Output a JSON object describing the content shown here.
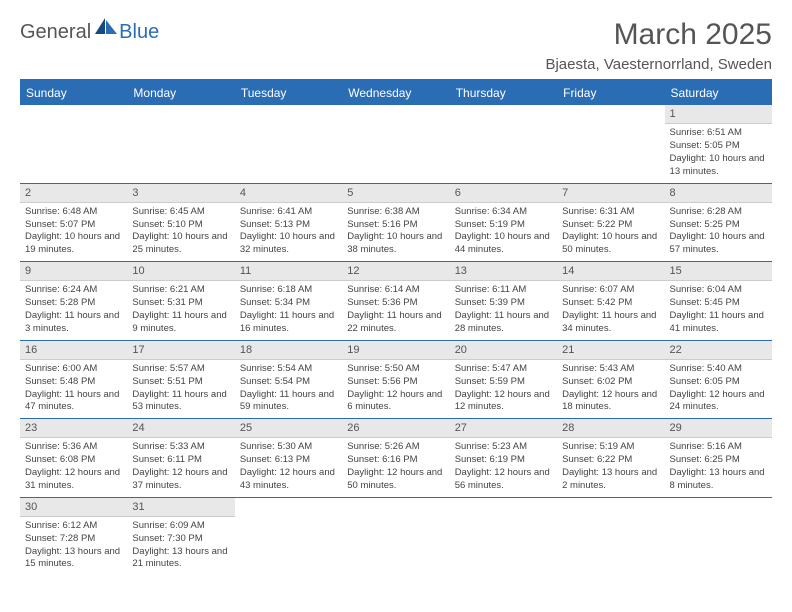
{
  "brand": {
    "text1": "General",
    "text2": "Blue"
  },
  "title": "March 2025",
  "location": "Bjaesta, Vaesternorrland, Sweden",
  "colors": {
    "header_bg": "#2a6db5",
    "header_text": "#ffffff",
    "daynum_bg": "#e8e8e8",
    "border": "#2a6db5",
    "text": "#444444"
  },
  "weekdays": [
    "Sunday",
    "Monday",
    "Tuesday",
    "Wednesday",
    "Thursday",
    "Friday",
    "Saturday"
  ],
  "weeks": [
    [
      {
        "empty": true
      },
      {
        "empty": true
      },
      {
        "empty": true
      },
      {
        "empty": true
      },
      {
        "empty": true
      },
      {
        "empty": true
      },
      {
        "day": "1",
        "sunrise": "Sunrise: 6:51 AM",
        "sunset": "Sunset: 5:05 PM",
        "daylight": "Daylight: 10 hours and 13 minutes."
      }
    ],
    [
      {
        "day": "2",
        "sunrise": "Sunrise: 6:48 AM",
        "sunset": "Sunset: 5:07 PM",
        "daylight": "Daylight: 10 hours and 19 minutes."
      },
      {
        "day": "3",
        "sunrise": "Sunrise: 6:45 AM",
        "sunset": "Sunset: 5:10 PM",
        "daylight": "Daylight: 10 hours and 25 minutes."
      },
      {
        "day": "4",
        "sunrise": "Sunrise: 6:41 AM",
        "sunset": "Sunset: 5:13 PM",
        "daylight": "Daylight: 10 hours and 32 minutes."
      },
      {
        "day": "5",
        "sunrise": "Sunrise: 6:38 AM",
        "sunset": "Sunset: 5:16 PM",
        "daylight": "Daylight: 10 hours and 38 minutes."
      },
      {
        "day": "6",
        "sunrise": "Sunrise: 6:34 AM",
        "sunset": "Sunset: 5:19 PM",
        "daylight": "Daylight: 10 hours and 44 minutes."
      },
      {
        "day": "7",
        "sunrise": "Sunrise: 6:31 AM",
        "sunset": "Sunset: 5:22 PM",
        "daylight": "Daylight: 10 hours and 50 minutes."
      },
      {
        "day": "8",
        "sunrise": "Sunrise: 6:28 AM",
        "sunset": "Sunset: 5:25 PM",
        "daylight": "Daylight: 10 hours and 57 minutes."
      }
    ],
    [
      {
        "day": "9",
        "sunrise": "Sunrise: 6:24 AM",
        "sunset": "Sunset: 5:28 PM",
        "daylight": "Daylight: 11 hours and 3 minutes."
      },
      {
        "day": "10",
        "sunrise": "Sunrise: 6:21 AM",
        "sunset": "Sunset: 5:31 PM",
        "daylight": "Daylight: 11 hours and 9 minutes."
      },
      {
        "day": "11",
        "sunrise": "Sunrise: 6:18 AM",
        "sunset": "Sunset: 5:34 PM",
        "daylight": "Daylight: 11 hours and 16 minutes."
      },
      {
        "day": "12",
        "sunrise": "Sunrise: 6:14 AM",
        "sunset": "Sunset: 5:36 PM",
        "daylight": "Daylight: 11 hours and 22 minutes."
      },
      {
        "day": "13",
        "sunrise": "Sunrise: 6:11 AM",
        "sunset": "Sunset: 5:39 PM",
        "daylight": "Daylight: 11 hours and 28 minutes."
      },
      {
        "day": "14",
        "sunrise": "Sunrise: 6:07 AM",
        "sunset": "Sunset: 5:42 PM",
        "daylight": "Daylight: 11 hours and 34 minutes."
      },
      {
        "day": "15",
        "sunrise": "Sunrise: 6:04 AM",
        "sunset": "Sunset: 5:45 PM",
        "daylight": "Daylight: 11 hours and 41 minutes."
      }
    ],
    [
      {
        "day": "16",
        "sunrise": "Sunrise: 6:00 AM",
        "sunset": "Sunset: 5:48 PM",
        "daylight": "Daylight: 11 hours and 47 minutes."
      },
      {
        "day": "17",
        "sunrise": "Sunrise: 5:57 AM",
        "sunset": "Sunset: 5:51 PM",
        "daylight": "Daylight: 11 hours and 53 minutes."
      },
      {
        "day": "18",
        "sunrise": "Sunrise: 5:54 AM",
        "sunset": "Sunset: 5:54 PM",
        "daylight": "Daylight: 11 hours and 59 minutes."
      },
      {
        "day": "19",
        "sunrise": "Sunrise: 5:50 AM",
        "sunset": "Sunset: 5:56 PM",
        "daylight": "Daylight: 12 hours and 6 minutes."
      },
      {
        "day": "20",
        "sunrise": "Sunrise: 5:47 AM",
        "sunset": "Sunset: 5:59 PM",
        "daylight": "Daylight: 12 hours and 12 minutes."
      },
      {
        "day": "21",
        "sunrise": "Sunrise: 5:43 AM",
        "sunset": "Sunset: 6:02 PM",
        "daylight": "Daylight: 12 hours and 18 minutes."
      },
      {
        "day": "22",
        "sunrise": "Sunrise: 5:40 AM",
        "sunset": "Sunset: 6:05 PM",
        "daylight": "Daylight: 12 hours and 24 minutes."
      }
    ],
    [
      {
        "day": "23",
        "sunrise": "Sunrise: 5:36 AM",
        "sunset": "Sunset: 6:08 PM",
        "daylight": "Daylight: 12 hours and 31 minutes."
      },
      {
        "day": "24",
        "sunrise": "Sunrise: 5:33 AM",
        "sunset": "Sunset: 6:11 PM",
        "daylight": "Daylight: 12 hours and 37 minutes."
      },
      {
        "day": "25",
        "sunrise": "Sunrise: 5:30 AM",
        "sunset": "Sunset: 6:13 PM",
        "daylight": "Daylight: 12 hours and 43 minutes."
      },
      {
        "day": "26",
        "sunrise": "Sunrise: 5:26 AM",
        "sunset": "Sunset: 6:16 PM",
        "daylight": "Daylight: 12 hours and 50 minutes."
      },
      {
        "day": "27",
        "sunrise": "Sunrise: 5:23 AM",
        "sunset": "Sunset: 6:19 PM",
        "daylight": "Daylight: 12 hours and 56 minutes."
      },
      {
        "day": "28",
        "sunrise": "Sunrise: 5:19 AM",
        "sunset": "Sunset: 6:22 PM",
        "daylight": "Daylight: 13 hours and 2 minutes."
      },
      {
        "day": "29",
        "sunrise": "Sunrise: 5:16 AM",
        "sunset": "Sunset: 6:25 PM",
        "daylight": "Daylight: 13 hours and 8 minutes."
      }
    ],
    [
      {
        "day": "30",
        "sunrise": "Sunrise: 6:12 AM",
        "sunset": "Sunset: 7:28 PM",
        "daylight": "Daylight: 13 hours and 15 minutes."
      },
      {
        "day": "31",
        "sunrise": "Sunrise: 6:09 AM",
        "sunset": "Sunset: 7:30 PM",
        "daylight": "Daylight: 13 hours and 21 minutes."
      },
      {
        "empty": true
      },
      {
        "empty": true
      },
      {
        "empty": true
      },
      {
        "empty": true
      },
      {
        "empty": true
      }
    ]
  ]
}
